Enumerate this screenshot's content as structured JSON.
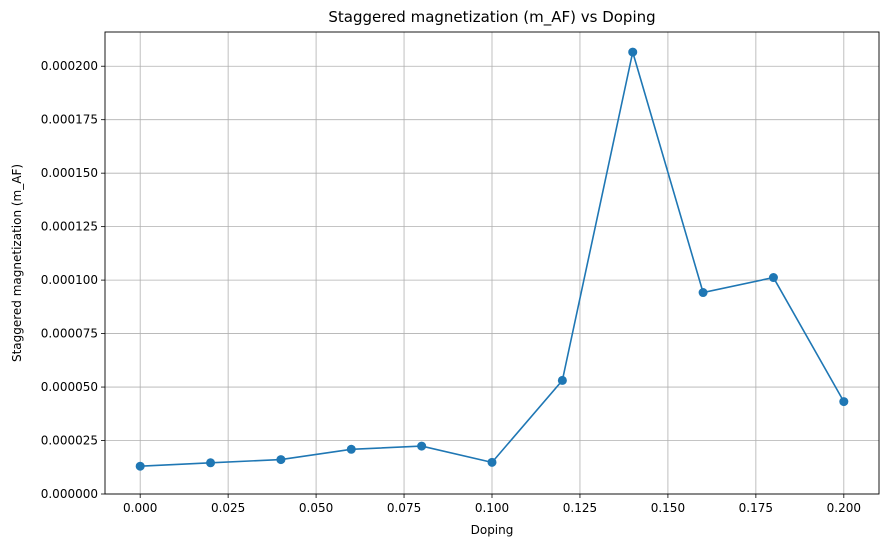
{
  "chart_data": {
    "type": "line",
    "title": "Staggered magnetization (m_AF) vs Doping",
    "xlabel": "Doping",
    "ylabel": "Staggered magnetization (m_AF)",
    "xlim": [
      -0.01,
      0.21
    ],
    "ylim": [
      0,
      0.000216
    ],
    "xticks": [
      0.0,
      0.025,
      0.05,
      0.075,
      0.1,
      0.125,
      0.15,
      0.175,
      0.2
    ],
    "xtick_labels": [
      "0.000",
      "0.025",
      "0.050",
      "0.075",
      "0.100",
      "0.125",
      "0.150",
      "0.175",
      "0.200"
    ],
    "yticks": [
      0,
      2.5e-05,
      5e-05,
      7.5e-05,
      0.0001,
      0.000125,
      0.00015,
      0.000175,
      0.0002
    ],
    "ytick_labels": [
      "0.000000",
      "0.000025",
      "0.000050",
      "0.000075",
      "0.000100",
      "0.000125",
      "0.000150",
      "0.000175",
      "0.000200"
    ],
    "grid": true,
    "series": [
      {
        "color": "#1f77b4",
        "marker": "circle",
        "x": [
          0.0,
          0.02,
          0.04,
          0.06,
          0.08,
          0.1,
          0.12,
          0.14,
          0.16,
          0.18,
          0.2
        ],
        "y": [
          1.3e-05,
          1.46e-05,
          1.61e-05,
          2.09e-05,
          2.24e-05,
          1.48e-05,
          5.31e-05,
          0.0002066,
          9.42e-05,
          0.0001012,
          4.32e-05
        ]
      }
    ]
  }
}
